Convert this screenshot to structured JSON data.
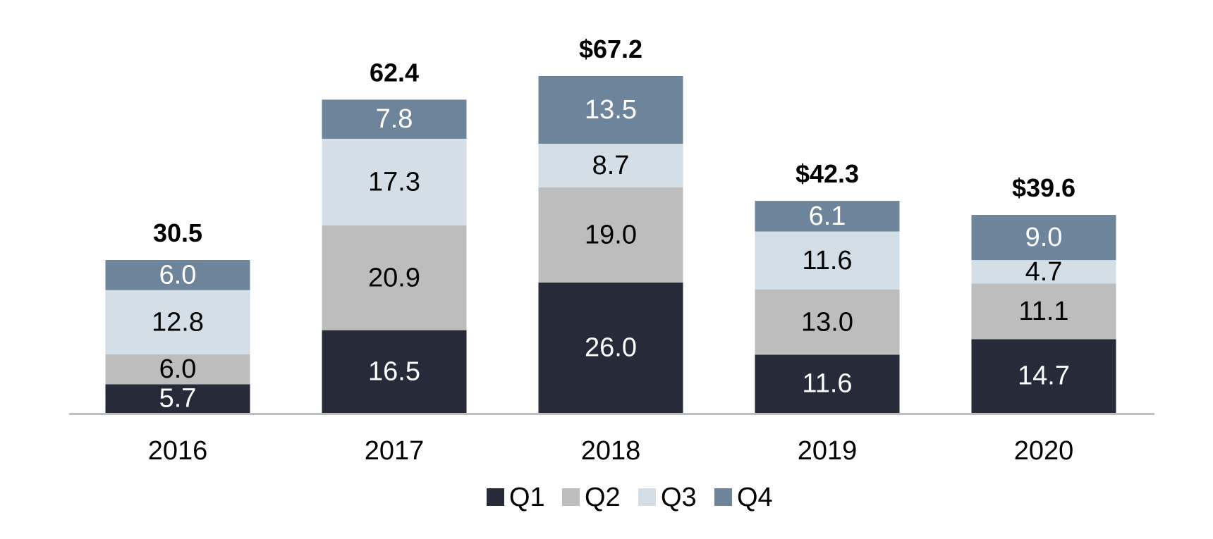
{
  "chart_data": {
    "type": "bar",
    "stacked": true,
    "categories": [
      "2016",
      "2017",
      "2018",
      "2019",
      "2020"
    ],
    "series": [
      {
        "name": "Q1",
        "color": "#262a39",
        "label_color": "#ffffff",
        "values": [
          5.7,
          16.5,
          26.0,
          11.6,
          14.7
        ],
        "labels": [
          "5.7",
          "16.5",
          "26.0",
          "11.6",
          "14.7"
        ]
      },
      {
        "name": "Q2",
        "color": "#bdbdbd",
        "label_color": "#000000",
        "values": [
          6.0,
          20.9,
          19.0,
          13.0,
          11.1
        ],
        "labels": [
          "6.0",
          "20.9",
          "19.0",
          "13.0",
          "11.1"
        ]
      },
      {
        "name": "Q3",
        "color": "#d4dee6",
        "label_color": "#000000",
        "values": [
          12.8,
          17.3,
          8.7,
          11.6,
          4.7
        ],
        "labels": [
          "12.8",
          "17.3",
          "8.7",
          "11.6",
          "4.7"
        ]
      },
      {
        "name": "Q4",
        "color": "#6e849b",
        "label_color": "#ffffff",
        "values": [
          6.0,
          7.8,
          13.5,
          6.1,
          9.0
        ],
        "labels": [
          "6.0",
          "7.8",
          "13.5",
          "6.1",
          "9.0"
        ]
      }
    ],
    "totals": [
      30.5,
      62.4,
      67.2,
      42.3,
      39.6
    ],
    "total_labels": [
      "30.5",
      "62.4",
      "$67.2",
      "$42.3",
      "$39.6"
    ],
    "title": "",
    "xlabel": "",
    "ylabel": "",
    "ylim": [
      0,
      67.2
    ],
    "grid": false,
    "legend_position": "bottom",
    "axis_color": "#bfbfbf"
  }
}
